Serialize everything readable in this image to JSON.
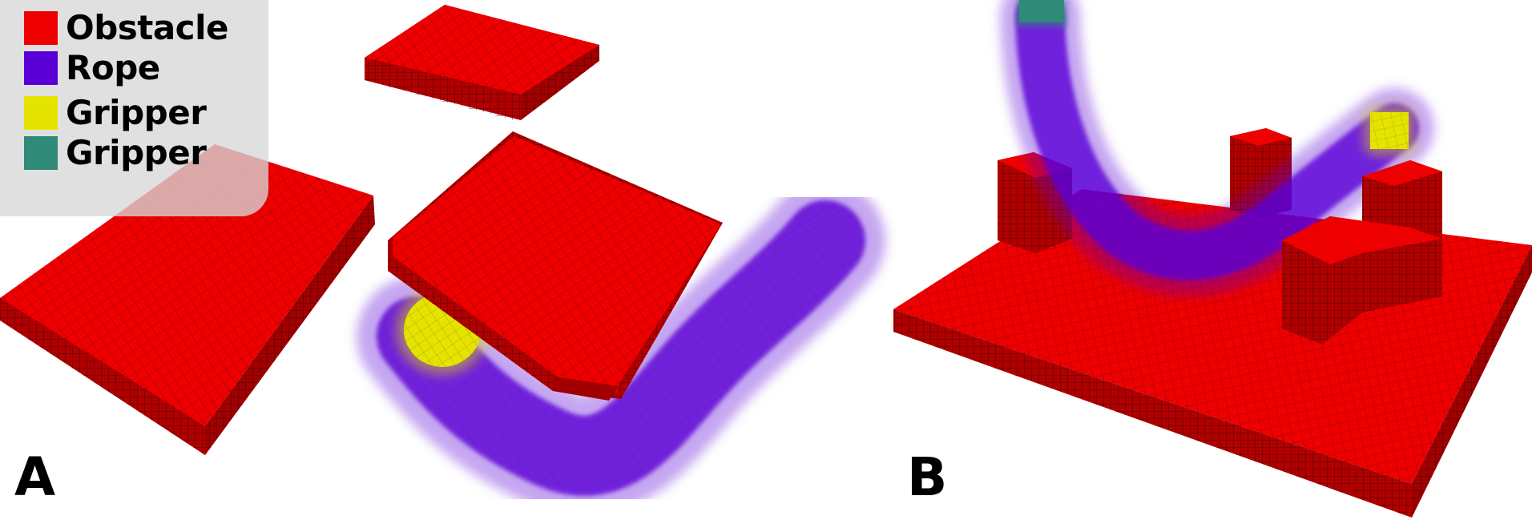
{
  "legend": {
    "items": [
      {
        "label": "Obstacle",
        "color": "#ee0000"
      },
      {
        "label": "Rope",
        "color": "#5a00d6"
      },
      {
        "label": "Gripper",
        "color": "#e4e400"
      },
      {
        "label": "Gripper",
        "color": "#2f8a78"
      }
    ]
  },
  "panels": {
    "a_label": "A",
    "b_label": "B"
  },
  "colors": {
    "obstacle_top": "#ee0000",
    "obstacle_side": "#b00000",
    "voxel_line": "#2a0000",
    "rope": "#5a00d6",
    "gripper_yellow": "#e4e400",
    "gripper_teal": "#2f8a78"
  }
}
